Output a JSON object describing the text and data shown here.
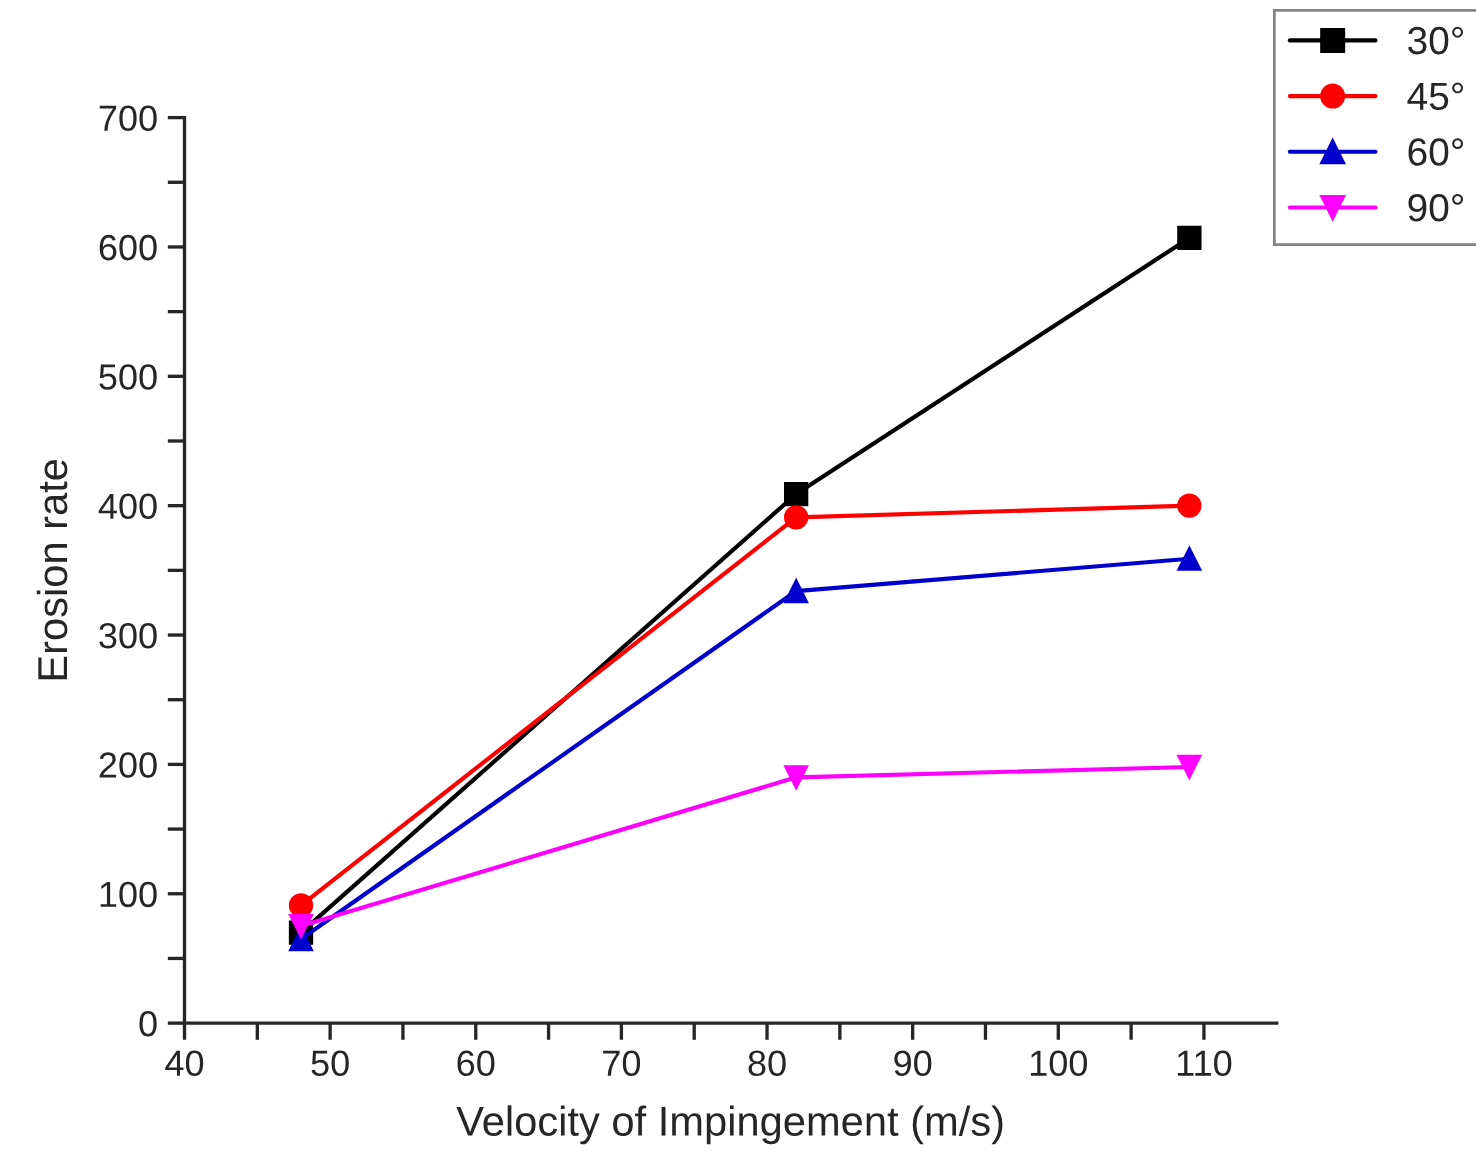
{
  "chart_data": {
    "type": "line",
    "xlabel": "Velocity of Impingement (m/s)",
    "ylabel": "Erosion rate",
    "x": [
      48,
      82,
      109
    ],
    "series": [
      {
        "name": "30°",
        "color": "#000000",
        "marker": "square",
        "values": [
          70,
          409,
          607
        ]
      },
      {
        "name": "45°",
        "color": "#ff0000",
        "marker": "circle",
        "values": [
          91,
          391,
          400
        ]
      },
      {
        "name": "60°",
        "color": "#0000cc",
        "marker": "triangle",
        "values": [
          65,
          334,
          359
        ]
      },
      {
        "name": "90°",
        "color": "#ff00ff",
        "marker": "triangle_down",
        "values": [
          75,
          190,
          198
        ]
      }
    ],
    "xlim": [
      40,
      115
    ],
    "ylim": [
      0,
      700
    ],
    "xticks": [
      40,
      {
        "value": 45,
        "label": null
      },
      50,
      {
        "value": 55,
        "label": null
      },
      60,
      {
        "value": 65,
        "label": null
      },
      70,
      {
        "value": 75,
        "label": null
      },
      80,
      {
        "value": 85,
        "label": null
      },
      90,
      {
        "value": 95,
        "label": null
      },
      100,
      {
        "value": 105,
        "label": null
      },
      110
    ],
    "yticks": [
      0,
      {
        "value": 50,
        "label": null
      },
      100,
      {
        "value": 150,
        "label": null
      },
      200,
      {
        "value": 250,
        "label": null
      },
      300,
      {
        "value": 350,
        "label": null
      },
      400,
      {
        "value": 450,
        "label": null
      },
      500,
      {
        "value": 550,
        "label": null
      },
      600,
      {
        "value": 650,
        "label": null
      },
      700
    ],
    "grid": false,
    "legend": "top right",
    "line_style": "solid"
  }
}
